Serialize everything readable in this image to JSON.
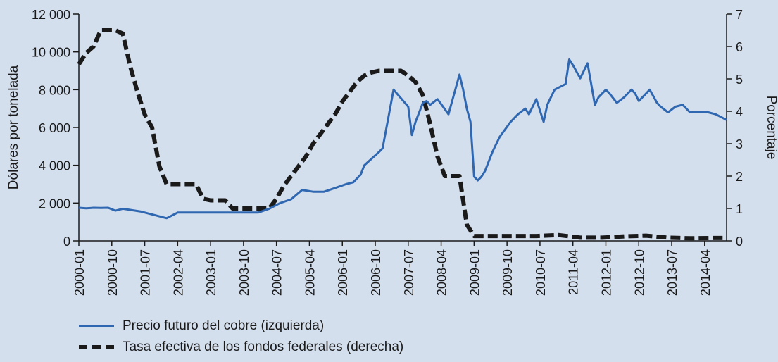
{
  "chart_data": {
    "type": "line",
    "title": "",
    "ylabel_left": "Dólares por tonelada",
    "ylabel_right": "Porcentaje",
    "ylim_left": [
      0,
      12000
    ],
    "ylim_right": [
      0,
      7
    ],
    "yticks_left": [
      "0",
      "2 000",
      "4 000",
      "6 000",
      "8 000",
      "10 000",
      "12 000"
    ],
    "yticks_left_values": [
      0,
      2000,
      4000,
      6000,
      8000,
      10000,
      12000
    ],
    "yticks_right": [
      "0",
      "1",
      "2",
      "3",
      "4",
      "5",
      "6",
      "7"
    ],
    "yticks_right_values": [
      0,
      1,
      2,
      3,
      4,
      5,
      6,
      7
    ],
    "xlim": [
      "2000-01",
      "2014-10"
    ],
    "xticks": [
      "2000-01",
      "2000-10",
      "2001-07",
      "2002-04",
      "2003-01",
      "2003-10",
      "2004-07",
      "2005-04",
      "2006-01",
      "2006-10",
      "2007-07",
      "2008-04",
      "2009-01",
      "2009-10",
      "2010-07",
      "2011-04",
      "2012-01",
      "2012-10",
      "2013-07",
      "2014-04"
    ],
    "colors": {
      "copper": "#2f67b1",
      "rate": "#1a1a1a",
      "background": "#d4dfee",
      "axis": "#1a1a1a"
    },
    "series": [
      {
        "name": "Precio futuro del cobre (izquierda)",
        "axis": "left",
        "x": [
          "2000-01",
          "2000-03",
          "2000-05",
          "2000-07",
          "2000-09",
          "2000-11",
          "2001-01",
          "2001-06",
          "2001-09",
          "2002-01",
          "2002-04",
          "2002-09",
          "2003-01",
          "2003-06",
          "2003-09",
          "2003-12",
          "2004-02",
          "2004-05",
          "2004-08",
          "2004-11",
          "2005-02",
          "2005-05",
          "2005-08",
          "2005-11",
          "2006-02",
          "2006-04",
          "2006-05",
          "2006-06",
          "2006-07",
          "2006-11",
          "2006-12",
          "2007-03",
          "2007-07",
          "2007-08",
          "2007-09",
          "2007-11",
          "2007-12",
          "2008-01",
          "2008-03",
          "2008-06",
          "2008-07",
          "2008-09",
          "2008-10",
          "2008-11",
          "2008-12",
          "2009-01",
          "2009-02",
          "2009-03",
          "2009-04",
          "2009-06",
          "2009-08",
          "2009-11",
          "2009-12",
          "2010-01",
          "2010-03",
          "2010-04",
          "2010-06",
          "2010-08",
          "2010-09",
          "2010-11",
          "2011-02",
          "2011-03",
          "2011-04",
          "2011-06",
          "2011-08",
          "2011-10",
          "2011-11",
          "2012-01",
          "2012-02",
          "2012-04",
          "2012-06",
          "2012-08",
          "2012-09",
          "2012-10",
          "2012-11",
          "2013-01",
          "2013-03",
          "2013-04",
          "2013-06",
          "2013-08",
          "2013-10",
          "2013-12",
          "2014-02",
          "2014-05",
          "2014-07",
          "2014-09",
          "2014-10"
        ],
        "values": [
          1750,
          1720,
          1750,
          1740,
          1750,
          1600,
          1700,
          1550,
          1400,
          1200,
          1500,
          1500,
          1500,
          1500,
          1500,
          1500,
          1500,
          1700,
          2000,
          2200,
          2700,
          2600,
          2600,
          2800,
          3000,
          3100,
          3300,
          3500,
          4000,
          4700,
          4900,
          8000,
          7100,
          5600,
          6300,
          7300,
          7400,
          7200,
          7500,
          6700,
          7400,
          8800,
          8000,
          7000,
          6300,
          3400,
          3200,
          3400,
          3700,
          4700,
          5500,
          6300,
          6500,
          6700,
          7000,
          6700,
          7500,
          6300,
          7200,
          8000,
          8300,
          9600,
          9300,
          8600,
          9400,
          7200,
          7600,
          8000,
          7800,
          7300,
          7600,
          8000,
          7800,
          7400,
          7600,
          8000,
          7300,
          7100,
          6800,
          7100,
          7200,
          6800,
          6800,
          6800,
          6700,
          6500,
          6400
        ]
      },
      {
        "name": "Tasa efectiva de los fondos federales (derecha)",
        "axis": "right",
        "x": [
          "2000-01",
          "2000-03",
          "2000-05",
          "2000-07",
          "2000-09",
          "2000-11",
          "2001-01",
          "2001-03",
          "2001-05",
          "2001-07",
          "2001-09",
          "2001-11",
          "2002-01",
          "2002-03",
          "2002-05",
          "2002-07",
          "2002-09",
          "2002-11",
          "2003-01",
          "2003-03",
          "2003-05",
          "2003-07",
          "2003-09",
          "2003-11",
          "2004-01",
          "2004-03",
          "2004-05",
          "2004-07",
          "2004-09",
          "2004-11",
          "2005-01",
          "2005-03",
          "2005-05",
          "2005-07",
          "2005-09",
          "2005-11",
          "2006-01",
          "2006-03",
          "2006-05",
          "2006-07",
          "2006-09",
          "2006-11",
          "2007-01",
          "2007-03",
          "2007-05",
          "2007-07",
          "2007-09",
          "2007-11",
          "2008-01",
          "2008-03",
          "2008-05",
          "2008-07",
          "2008-09",
          "2008-11",
          "2009-01",
          "2009-06",
          "2010-01",
          "2010-06",
          "2010-12",
          "2011-06",
          "2011-12",
          "2012-06",
          "2012-12",
          "2013-06",
          "2013-12",
          "2014-06",
          "2014-10"
        ],
        "values": [
          5.45,
          5.8,
          6.0,
          6.5,
          6.5,
          6.5,
          6.4,
          5.4,
          4.6,
          3.9,
          3.5,
          2.3,
          1.75,
          1.75,
          1.75,
          1.75,
          1.75,
          1.3,
          1.25,
          1.25,
          1.25,
          1.0,
          1.0,
          1.0,
          1.0,
          1.0,
          1.0,
          1.3,
          1.7,
          2.0,
          2.3,
          2.6,
          3.0,
          3.3,
          3.6,
          3.9,
          4.3,
          4.6,
          4.9,
          5.1,
          5.2,
          5.25,
          5.25,
          5.25,
          5.25,
          5.1,
          4.9,
          4.5,
          3.6,
          2.6,
          2.0,
          2.0,
          2.0,
          0.5,
          0.15,
          0.15,
          0.15,
          0.15,
          0.18,
          0.1,
          0.1,
          0.14,
          0.16,
          0.1,
          0.08,
          0.09,
          0.09
        ]
      }
    ]
  },
  "legend": {
    "items": [
      {
        "label": "Precio futuro del cobre (izquierda)"
      },
      {
        "label": "Tasa efectiva de los fondos federales (derecha)"
      }
    ]
  }
}
